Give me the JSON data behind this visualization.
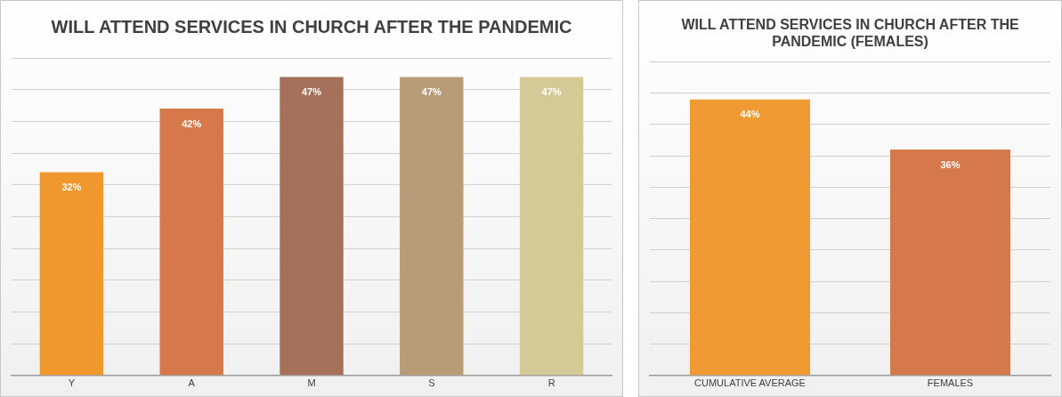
{
  "chart_data": [
    {
      "type": "bar",
      "title": "WILL ATTEND SERVICES IN CHURCH AFTER THE PANDEMIC",
      "categories": [
        "Y",
        "A",
        "M",
        "S",
        "R"
      ],
      "values": [
        32,
        42,
        47,
        47,
        47
      ],
      "colors": [
        "#f0972e",
        "#d5784a",
        "#a5715a",
        "#b89c78",
        "#d3ca98"
      ],
      "value_labels": [
        "32%",
        "42%",
        "47%",
        "47%",
        "47%"
      ],
      "ylim": [
        0,
        50
      ],
      "yticks": [
        {
          "value": 0,
          "label": null
        },
        {
          "value": 5,
          "label": null
        },
        {
          "value": 10,
          "label": null
        },
        {
          "value": 15,
          "label": null
        },
        {
          "value": 20,
          "label": null
        },
        {
          "value": 25,
          "label": null
        },
        {
          "value": 30,
          "label": null
        },
        {
          "value": 35,
          "label": null
        },
        {
          "value": 40,
          "label": null
        },
        {
          "value": 45,
          "label": null
        },
        {
          "value": 50,
          "label": null
        }
      ],
      "grid": "y",
      "tick_labels": "x",
      "legend": false
    },
    {
      "type": "bar",
      "title": "WILL ATTEND SERVICES IN CHURCH AFTER THE PANDEMIC (FEMALES)",
      "categories": [
        "CUMULATIVE AVERAGE",
        "FEMALES"
      ],
      "values": [
        44,
        36
      ],
      "colors": [
        "#f09a33",
        "#d5784a"
      ],
      "value_labels": [
        "44%",
        "36%"
      ],
      "ylim": [
        0,
        50
      ],
      "yticks": [
        {
          "value": 0,
          "label": null
        },
        {
          "value": 5,
          "label": null
        },
        {
          "value": 10,
          "label": null
        },
        {
          "value": 15,
          "label": null
        },
        {
          "value": 20,
          "label": null
        },
        {
          "value": 25,
          "label": null
        },
        {
          "value": 30,
          "label": null
        },
        {
          "value": 35,
          "label": null
        },
        {
          "value": 40,
          "label": null
        },
        {
          "value": 45,
          "label": null
        },
        {
          "value": 50,
          "label": null
        }
      ],
      "grid": "y",
      "tick_labels": "x",
      "legend": false
    }
  ]
}
